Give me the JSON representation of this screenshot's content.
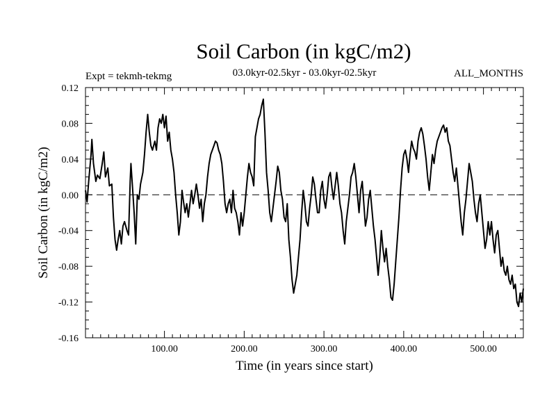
{
  "chart_data": {
    "type": "line",
    "title": "Soil Carbon (in kgC/m2)",
    "subtitle_left": "Expt = tekmh-tekmg",
    "subtitle_center": "03.0kyr-02.5kyr - 03.0kyr-02.5kyr",
    "subtitle_right": "ALL_MONTHS",
    "xlabel": "Time (in years since start)",
    "ylabel": "Soil Carbon (in kgC/m2)",
    "xlim": [
      1,
      550
    ],
    "ylim": [
      -0.16,
      0.12
    ],
    "x_ticks": [
      {
        "value": 100,
        "label": "100.00"
      },
      {
        "value": 200,
        "label": "200.00"
      },
      {
        "value": 300,
        "label": "300.00"
      },
      {
        "value": 400,
        "label": "400.00"
      },
      {
        "value": 500,
        "label": "500.00"
      }
    ],
    "y_ticks": [
      {
        "value": 0.12,
        "label": "0.12"
      },
      {
        "value": 0.08,
        "label": "0.08"
      },
      {
        "value": 0.04,
        "label": "0.04"
      },
      {
        "value": 0.0,
        "label": "0.00"
      },
      {
        "value": -0.04,
        "label": "-0.04"
      },
      {
        "value": -0.08,
        "label": "-0.08"
      },
      {
        "value": -0.12,
        "label": "-0.12"
      },
      {
        "value": -0.16,
        "label": "-0.16"
      }
    ],
    "reference_line": {
      "y": 0.0,
      "style": "dashed"
    },
    "series": [
      {
        "name": "Soil Carbon",
        "color": "#000000",
        "points": [
          [
            1,
            0.005
          ],
          [
            3,
            -0.008
          ],
          [
            5,
            0.015
          ],
          [
            8,
            0.045
          ],
          [
            9,
            0.062
          ],
          [
            11,
            0.035
          ],
          [
            14,
            0.015
          ],
          [
            16,
            0.022
          ],
          [
            19,
            0.018
          ],
          [
            22,
            0.035
          ],
          [
            24,
            0.048
          ],
          [
            26,
            0.02
          ],
          [
            29,
            0.03
          ],
          [
            31,
            0.01
          ],
          [
            34,
            0.012
          ],
          [
            36,
            -0.025
          ],
          [
            38,
            -0.05
          ],
          [
            40,
            -0.062
          ],
          [
            42,
            -0.05
          ],
          [
            44,
            -0.04
          ],
          [
            46,
            -0.055
          ],
          [
            48,
            -0.035
          ],
          [
            50,
            -0.03
          ],
          [
            53,
            -0.04
          ],
          [
            55,
            -0.045
          ],
          [
            57,
            0.015
          ],
          [
            58,
            0.035
          ],
          [
            60,
            0.008
          ],
          [
            62,
            -0.02
          ],
          [
            64,
            -0.055
          ],
          [
            66,
            0.0
          ],
          [
            68,
            -0.005
          ],
          [
            70,
            0.012
          ],
          [
            73,
            0.025
          ],
          [
            75,
            0.045
          ],
          [
            77,
            0.07
          ],
          [
            79,
            0.09
          ],
          [
            81,
            0.07
          ],
          [
            83,
            0.055
          ],
          [
            85,
            0.05
          ],
          [
            88,
            0.06
          ],
          [
            90,
            0.05
          ],
          [
            92,
            0.075
          ],
          [
            94,
            0.085
          ],
          [
            96,
            0.08
          ],
          [
            98,
            0.09
          ],
          [
            100,
            0.075
          ],
          [
            102,
            0.088
          ],
          [
            104,
            0.06
          ],
          [
            106,
            0.07
          ],
          [
            108,
            0.05
          ],
          [
            110,
            0.04
          ],
          [
            112,
            0.025
          ],
          [
            114,
            0.0
          ],
          [
            116,
            -0.02
          ],
          [
            118,
            -0.045
          ],
          [
            120,
            -0.03
          ],
          [
            122,
            0.005
          ],
          [
            124,
            -0.008
          ],
          [
            126,
            -0.02
          ],
          [
            128,
            -0.01
          ],
          [
            130,
            -0.025
          ],
          [
            132,
            -0.01
          ],
          [
            134,
            0.005
          ],
          [
            136,
            -0.01
          ],
          [
            138,
            0.0
          ],
          [
            140,
            0.012
          ],
          [
            142,
            0.0
          ],
          [
            144,
            -0.015
          ],
          [
            146,
            -0.005
          ],
          [
            148,
            -0.03
          ],
          [
            150,
            -0.01
          ],
          [
            152,
            0.0
          ],
          [
            154,
            0.02
          ],
          [
            156,
            0.035
          ],
          [
            158,
            0.045
          ],
          [
            160,
            0.05
          ],
          [
            162,
            0.055
          ],
          [
            164,
            0.06
          ],
          [
            166,
            0.058
          ],
          [
            168,
            0.05
          ],
          [
            170,
            0.045
          ],
          [
            172,
            0.035
          ],
          [
            174,
            0.015
          ],
          [
            176,
            -0.01
          ],
          [
            178,
            -0.02
          ],
          [
            180,
            -0.01
          ],
          [
            182,
            -0.005
          ],
          [
            184,
            -0.02
          ],
          [
            186,
            0.005
          ],
          [
            188,
            -0.015
          ],
          [
            190,
            -0.02
          ],
          [
            192,
            -0.03
          ],
          [
            194,
            -0.045
          ],
          [
            196,
            -0.02
          ],
          [
            198,
            -0.035
          ],
          [
            200,
            -0.02
          ],
          [
            202,
            0.0
          ],
          [
            204,
            0.02
          ],
          [
            206,
            0.035
          ],
          [
            208,
            0.025
          ],
          [
            210,
            0.02
          ],
          [
            212,
            0.01
          ],
          [
            214,
            0.065
          ],
          [
            216,
            0.075
          ],
          [
            218,
            0.085
          ],
          [
            220,
            0.09
          ],
          [
            222,
            0.1
          ],
          [
            224,
            0.107
          ],
          [
            226,
            0.07
          ],
          [
            228,
            0.025
          ],
          [
            230,
            0.005
          ],
          [
            232,
            -0.02
          ],
          [
            234,
            -0.03
          ],
          [
            236,
            -0.015
          ],
          [
            238,
            0.0
          ],
          [
            240,
            0.015
          ],
          [
            242,
            0.032
          ],
          [
            244,
            0.025
          ],
          [
            246,
            0.005
          ],
          [
            248,
            -0.005
          ],
          [
            250,
            -0.025
          ],
          [
            252,
            -0.03
          ],
          [
            254,
            -0.01
          ],
          [
            256,
            -0.05
          ],
          [
            258,
            -0.07
          ],
          [
            260,
            -0.095
          ],
          [
            262,
            -0.11
          ],
          [
            264,
            -0.1
          ],
          [
            266,
            -0.09
          ],
          [
            268,
            -0.07
          ],
          [
            270,
            -0.05
          ],
          [
            272,
            -0.02
          ],
          [
            274,
            0.005
          ],
          [
            276,
            -0.01
          ],
          [
            278,
            -0.03
          ],
          [
            280,
            -0.035
          ],
          [
            282,
            -0.015
          ],
          [
            284,
            0.0
          ],
          [
            286,
            0.02
          ],
          [
            288,
            0.012
          ],
          [
            290,
            -0.005
          ],
          [
            292,
            -0.02
          ],
          [
            294,
            -0.02
          ],
          [
            296,
            0.005
          ],
          [
            298,
            0.015
          ],
          [
            300,
            -0.005
          ],
          [
            302,
            -0.015
          ],
          [
            304,
            0.0
          ],
          [
            306,
            0.02
          ],
          [
            308,
            0.025
          ],
          [
            310,
            0.008
          ],
          [
            312,
            -0.005
          ],
          [
            314,
            0.01
          ],
          [
            316,
            0.025
          ],
          [
            318,
            0.01
          ],
          [
            320,
            -0.01
          ],
          [
            322,
            -0.02
          ],
          [
            324,
            -0.04
          ],
          [
            326,
            -0.055
          ],
          [
            328,
            -0.03
          ],
          [
            330,
            -0.015
          ],
          [
            332,
            0.0
          ],
          [
            334,
            0.02
          ],
          [
            336,
            0.025
          ],
          [
            338,
            0.035
          ],
          [
            340,
            0.02
          ],
          [
            342,
            0.0
          ],
          [
            344,
            -0.02
          ],
          [
            346,
            0.005
          ],
          [
            348,
            0.015
          ],
          [
            350,
            -0.01
          ],
          [
            352,
            -0.035
          ],
          [
            354,
            -0.025
          ],
          [
            356,
            -0.005
          ],
          [
            358,
            0.005
          ],
          [
            360,
            -0.015
          ],
          [
            362,
            -0.035
          ],
          [
            364,
            -0.05
          ],
          [
            366,
            -0.07
          ],
          [
            368,
            -0.09
          ],
          [
            370,
            -0.07
          ],
          [
            372,
            -0.04
          ],
          [
            374,
            -0.06
          ],
          [
            376,
            -0.075
          ],
          [
            378,
            -0.06
          ],
          [
            380,
            -0.08
          ],
          [
            382,
            -0.095
          ],
          [
            384,
            -0.115
          ],
          [
            386,
            -0.118
          ],
          [
            388,
            -0.1
          ],
          [
            390,
            -0.075
          ],
          [
            392,
            -0.05
          ],
          [
            394,
            -0.025
          ],
          [
            396,
            0.005
          ],
          [
            398,
            0.03
          ],
          [
            400,
            0.045
          ],
          [
            402,
            0.05
          ],
          [
            404,
            0.04
          ],
          [
            406,
            0.025
          ],
          [
            408,
            0.045
          ],
          [
            410,
            0.06
          ],
          [
            412,
            0.052
          ],
          [
            414,
            0.048
          ],
          [
            416,
            0.04
          ],
          [
            418,
            0.06
          ],
          [
            420,
            0.07
          ],
          [
            422,
            0.075
          ],
          [
            424,
            0.068
          ],
          [
            426,
            0.055
          ],
          [
            428,
            0.04
          ],
          [
            430,
            0.02
          ],
          [
            432,
            0.005
          ],
          [
            434,
            0.025
          ],
          [
            436,
            0.045
          ],
          [
            438,
            0.035
          ],
          [
            440,
            0.05
          ],
          [
            442,
            0.06
          ],
          [
            444,
            0.065
          ],
          [
            446,
            0.07
          ],
          [
            448,
            0.075
          ],
          [
            450,
            0.078
          ],
          [
            452,
            0.07
          ],
          [
            454,
            0.075
          ],
          [
            456,
            0.06
          ],
          [
            458,
            0.055
          ],
          [
            460,
            0.04
          ],
          [
            462,
            0.025
          ],
          [
            464,
            0.015
          ],
          [
            466,
            0.03
          ],
          [
            468,
            0.01
          ],
          [
            470,
            -0.01
          ],
          [
            472,
            -0.03
          ],
          [
            474,
            -0.045
          ],
          [
            476,
            -0.02
          ],
          [
            478,
            -0.005
          ],
          [
            480,
            0.015
          ],
          [
            482,
            0.035
          ],
          [
            484,
            0.025
          ],
          [
            486,
            0.015
          ],
          [
            488,
            -0.005
          ],
          [
            490,
            -0.02
          ],
          [
            492,
            -0.03
          ],
          [
            494,
            -0.01
          ],
          [
            496,
            0.0
          ],
          [
            498,
            -0.02
          ],
          [
            500,
            -0.04
          ],
          [
            502,
            -0.06
          ],
          [
            504,
            -0.05
          ],
          [
            506,
            -0.03
          ],
          [
            508,
            -0.045
          ],
          [
            510,
            -0.03
          ],
          [
            512,
            -0.05
          ],
          [
            514,
            -0.065
          ],
          [
            516,
            -0.045
          ],
          [
            518,
            -0.04
          ],
          [
            520,
            -0.06
          ],
          [
            522,
            -0.08
          ],
          [
            524,
            -0.07
          ],
          [
            526,
            -0.085
          ],
          [
            528,
            -0.09
          ],
          [
            530,
            -0.08
          ],
          [
            532,
            -0.095
          ],
          [
            534,
            -0.1
          ],
          [
            536,
            -0.09
          ],
          [
            538,
            -0.105
          ],
          [
            540,
            -0.1
          ],
          [
            542,
            -0.12
          ],
          [
            544,
            -0.125
          ],
          [
            546,
            -0.11
          ],
          [
            548,
            -0.12
          ],
          [
            550,
            -0.105
          ]
        ]
      }
    ]
  }
}
